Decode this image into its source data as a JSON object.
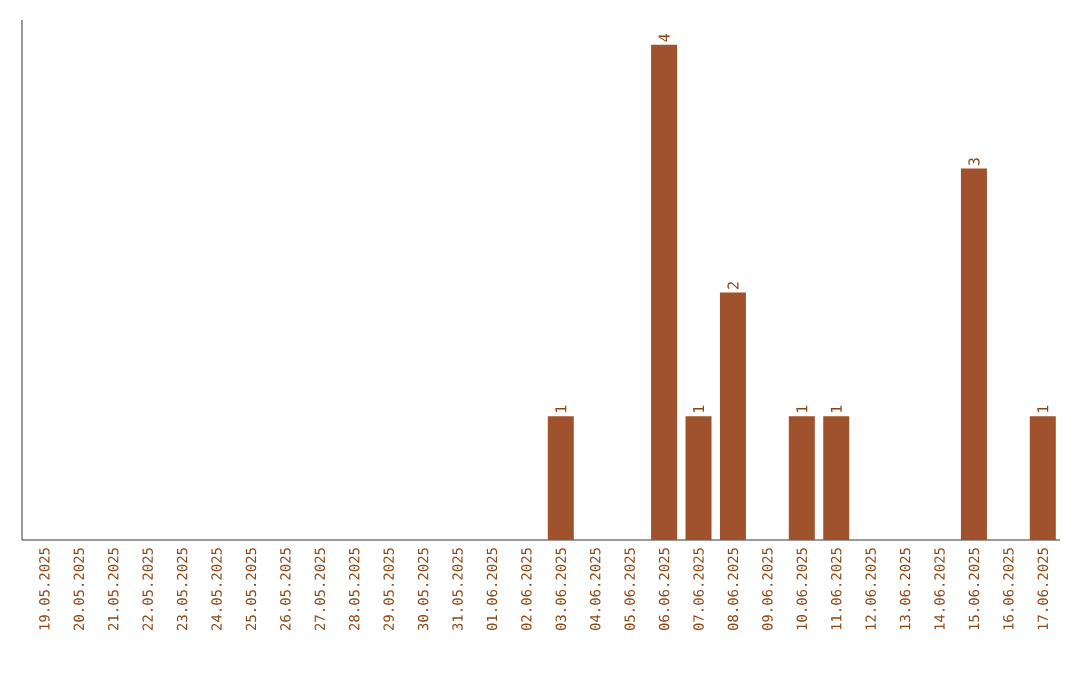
{
  "chart_data": {
    "type": "bar",
    "categories": [
      "19.05.2025",
      "20.05.2025",
      "21.05.2025",
      "22.05.2025",
      "23.05.2025",
      "24.05.2025",
      "25.05.2025",
      "26.05.2025",
      "27.05.2025",
      "28.05.2025",
      "29.05.2025",
      "30.05.2025",
      "31.05.2025",
      "01.06.2025",
      "02.06.2025",
      "03.06.2025",
      "04.06.2025",
      "05.06.2025",
      "06.06.2025",
      "07.06.2025",
      "08.06.2025",
      "09.06.2025",
      "10.06.2025",
      "11.06.2025",
      "12.06.2025",
      "13.06.2025",
      "14.06.2025",
      "15.06.2025",
      "16.06.2025",
      "17.06.2025"
    ],
    "values": [
      null,
      null,
      null,
      null,
      null,
      null,
      null,
      null,
      null,
      null,
      null,
      null,
      null,
      null,
      null,
      1,
      null,
      null,
      4,
      1,
      2,
      null,
      1,
      1,
      null,
      null,
      null,
      3,
      null,
      1
    ],
    "color": "#a0522d",
    "ylim": [
      0,
      4.2
    ],
    "data_labels": true,
    "tick_labels": "x",
    "grid": false
  }
}
